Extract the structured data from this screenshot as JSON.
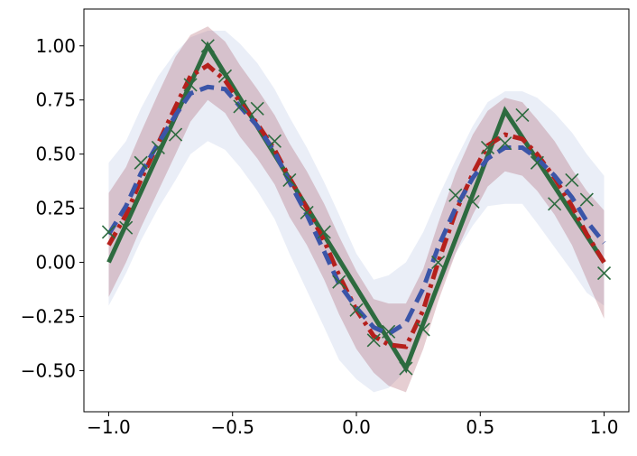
{
  "chart_data": {
    "type": "line",
    "title": "",
    "xlabel": "",
    "ylabel": "",
    "xlim": [
      -1.1,
      1.1
    ],
    "ylim": [
      -0.69,
      1.17
    ],
    "grid": false,
    "x_ticks": [
      -1.0,
      -0.5,
      0.0,
      0.5,
      1.0
    ],
    "x_tick_labels": [
      "−1.0",
      "−0.5",
      "0.0",
      "0.5",
      "1.0"
    ],
    "y_ticks": [
      -0.5,
      -0.25,
      0.0,
      0.25,
      0.5,
      0.75,
      1.0
    ],
    "y_tick_labels": [
      "−0.50",
      "−0.25",
      "0.00",
      "0.25",
      "0.50",
      "0.75",
      "1.00"
    ],
    "series": [
      {
        "role": "true-function",
        "style": "solid",
        "color": "#2d6b3f",
        "x": [
          -1.0,
          -0.6,
          0.2,
          0.6,
          1.0
        ],
        "y": [
          0.0,
          1.0,
          -0.49,
          0.7,
          0.0
        ]
      },
      {
        "role": "noisy-samples",
        "style": "x-markers",
        "color": "#2d6b3f",
        "x": [
          -1.0,
          -0.93,
          -0.87,
          -0.8,
          -0.73,
          -0.67,
          -0.6,
          -0.53,
          -0.47,
          -0.4,
          -0.33,
          -0.27,
          -0.2,
          -0.13,
          -0.07,
          0.0,
          0.07,
          0.13,
          0.2,
          0.27,
          0.33,
          0.4,
          0.47,
          0.53,
          0.6,
          0.67,
          0.73,
          0.8,
          0.87,
          0.93,
          1.0
        ],
        "y": [
          0.14,
          0.16,
          0.46,
          0.53,
          0.59,
          0.82,
          1.0,
          0.86,
          0.72,
          0.71,
          0.56,
          0.38,
          0.23,
          0.14,
          -0.09,
          -0.22,
          -0.36,
          -0.32,
          -0.49,
          -0.31,
          0.0,
          0.31,
          0.28,
          0.53,
          0.55,
          0.68,
          0.46,
          0.27,
          0.38,
          0.29,
          -0.05
        ]
      },
      {
        "role": "model-mean-a",
        "style": "dash-dot",
        "color": "#b5201c",
        "band_color": "#9c3a4c",
        "x": [
          -1.0,
          -0.93,
          -0.87,
          -0.8,
          -0.73,
          -0.67,
          -0.6,
          -0.53,
          -0.47,
          -0.4,
          -0.33,
          -0.27,
          -0.2,
          -0.13,
          -0.07,
          0.0,
          0.07,
          0.13,
          0.2,
          0.27,
          0.33,
          0.4,
          0.47,
          0.53,
          0.6,
          0.67,
          0.73,
          0.8,
          0.87,
          0.93,
          1.0
        ],
        "y": [
          0.08,
          0.22,
          0.38,
          0.55,
          0.72,
          0.86,
          0.91,
          0.84,
          0.74,
          0.64,
          0.52,
          0.39,
          0.25,
          0.1,
          -0.06,
          -0.22,
          -0.34,
          -0.38,
          -0.39,
          -0.22,
          0.0,
          0.23,
          0.41,
          0.54,
          0.59,
          0.57,
          0.5,
          0.39,
          0.26,
          0.13,
          0.0
        ],
        "lower": [
          -0.16,
          0.0,
          0.16,
          0.33,
          0.5,
          0.65,
          0.75,
          0.69,
          0.58,
          0.48,
          0.36,
          0.21,
          0.08,
          -0.08,
          -0.24,
          -0.4,
          -0.51,
          -0.57,
          -0.6,
          -0.4,
          -0.18,
          0.04,
          0.22,
          0.35,
          0.42,
          0.4,
          0.33,
          0.22,
          0.08,
          -0.08,
          -0.26
        ],
        "upper": [
          0.32,
          0.44,
          0.6,
          0.78,
          0.95,
          1.05,
          1.09,
          1.02,
          0.91,
          0.8,
          0.68,
          0.55,
          0.42,
          0.27,
          0.12,
          -0.04,
          -0.17,
          -0.19,
          -0.19,
          -0.03,
          0.18,
          0.41,
          0.59,
          0.7,
          0.76,
          0.74,
          0.66,
          0.56,
          0.43,
          0.33,
          0.24
        ]
      },
      {
        "role": "model-mean-b",
        "style": "dashed",
        "color": "#3b55a8",
        "band_color": "#9fb3da",
        "x": [
          -1.0,
          -0.93,
          -0.87,
          -0.8,
          -0.73,
          -0.67,
          -0.6,
          -0.53,
          -0.47,
          -0.4,
          -0.33,
          -0.27,
          -0.2,
          -0.13,
          -0.07,
          0.0,
          0.07,
          0.13,
          0.2,
          0.27,
          0.33,
          0.4,
          0.47,
          0.53,
          0.6,
          0.67,
          0.73,
          0.8,
          0.87,
          0.93,
          1.0
        ],
        "y": [
          0.13,
          0.26,
          0.41,
          0.55,
          0.68,
          0.78,
          0.81,
          0.8,
          0.72,
          0.63,
          0.51,
          0.37,
          0.22,
          0.05,
          -0.1,
          -0.21,
          -0.3,
          -0.33,
          -0.28,
          -0.12,
          0.07,
          0.25,
          0.39,
          0.48,
          0.53,
          0.53,
          0.48,
          0.4,
          0.3,
          0.19,
          0.09
        ],
        "lower": [
          -0.2,
          -0.05,
          0.1,
          0.25,
          0.38,
          0.5,
          0.56,
          0.52,
          0.44,
          0.33,
          0.2,
          0.04,
          -0.13,
          -0.3,
          -0.45,
          -0.54,
          -0.6,
          -0.58,
          -0.5,
          -0.33,
          -0.14,
          0.04,
          0.17,
          0.26,
          0.27,
          0.27,
          0.18,
          0.07,
          -0.04,
          -0.14,
          -0.2
        ],
        "upper": [
          0.46,
          0.56,
          0.71,
          0.86,
          0.97,
          1.04,
          1.07,
          1.07,
          1.01,
          0.92,
          0.8,
          0.67,
          0.53,
          0.37,
          0.22,
          0.04,
          -0.08,
          -0.06,
          0.0,
          0.14,
          0.3,
          0.47,
          0.63,
          0.74,
          0.79,
          0.79,
          0.76,
          0.69,
          0.6,
          0.5,
          0.4
        ]
      }
    ]
  }
}
